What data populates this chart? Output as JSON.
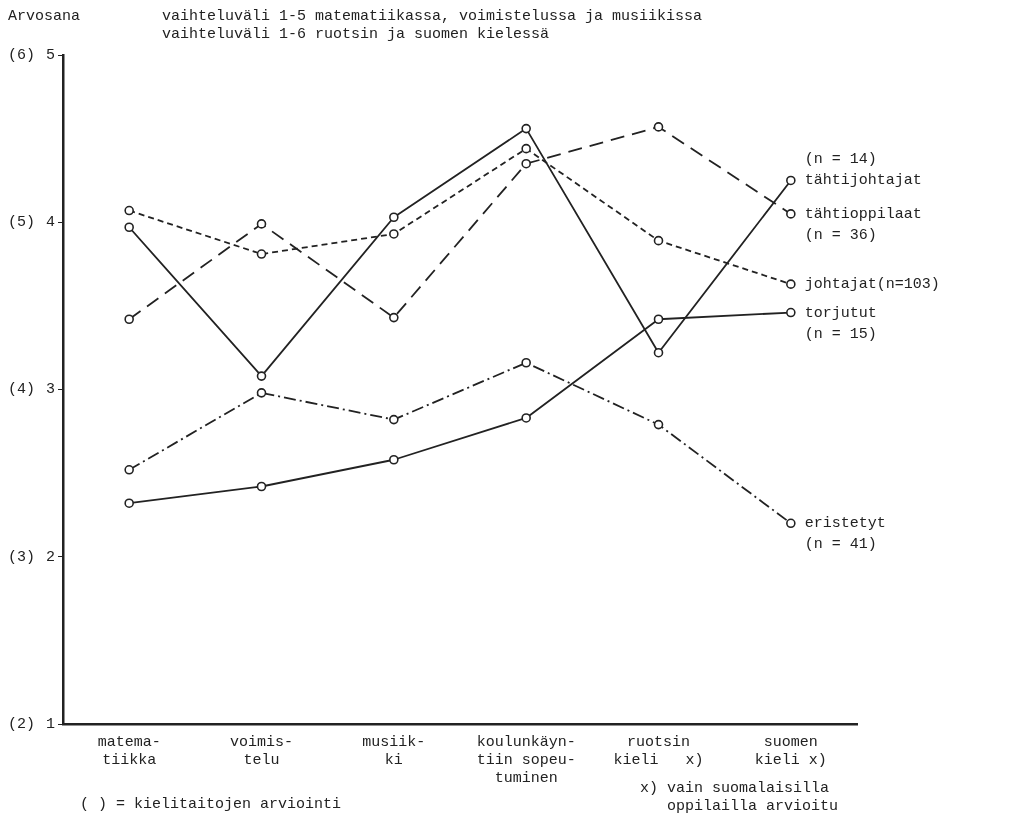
{
  "chart_data": {
    "type": "line",
    "title": "vaihteluväli 1-5 matematiikassa, voimistelussa ja musiikissa",
    "subtitle": "vaihteluväli 1-6 ruotsin ja suomen kielessä",
    "ylabel": "Arvosana",
    "categories": [
      "matema-\ntiikka",
      "voimis-\ntelu",
      "musiik-\nki",
      "koulunkäyn-\ntiin sopeu-\ntuminen",
      "ruotsin\nkieli   x)",
      "suomen\nkieli x)"
    ],
    "series": [
      {
        "name": "(n = 14)\ntähtijohtajat",
        "color": "#222222",
        "line_style": "solid",
        "values": [
          3.97,
          3.08,
          4.03,
          4.56,
          3.22,
          4.25
        ]
      },
      {
        "name": "tähtioppilaat\n(n = 36)",
        "color": "#222222",
        "line_style": "dashed",
        "values": [
          3.42,
          3.99,
          3.43,
          4.35,
          4.57,
          4.05
        ]
      },
      {
        "name": "johtajat(n=103)",
        "color": "#222222",
        "line_style": "dotted",
        "values": [
          4.07,
          3.81,
          3.93,
          4.44,
          3.89,
          3.63
        ]
      },
      {
        "name": "torjutut\n(n = 15)",
        "color": "#222222",
        "line_style": "solid",
        "values": [
          2.32,
          2.42,
          2.58,
          2.83,
          3.42,
          3.46
        ]
      },
      {
        "name": "eristetyt\n(n = 41)",
        "color": "#222222",
        "line_style": "dashdot",
        "values": [
          2.52,
          2.98,
          2.82,
          3.16,
          2.79,
          2.2
        ]
      }
    ],
    "ylim": [
      1,
      5
    ],
    "yticks": [
      1,
      2,
      3,
      4,
      5
    ],
    "y2lim": [
      2,
      6
    ],
    "y2ticks": [
      {
        "value": 2,
        "label": "(2)"
      },
      {
        "value": 3,
        "label": "(3)"
      },
      {
        "value": 4,
        "label": "(4)"
      },
      {
        "value": 5,
        "label": "(5)"
      },
      {
        "value": 6,
        "label": "(6)"
      }
    ],
    "grid": false,
    "legend": false,
    "marker": "circle",
    "annotations": [
      "( ) = kielitaitojen arviointi",
      "x) vain suomalaisilla\n   oppilailla arvioitu"
    ]
  }
}
